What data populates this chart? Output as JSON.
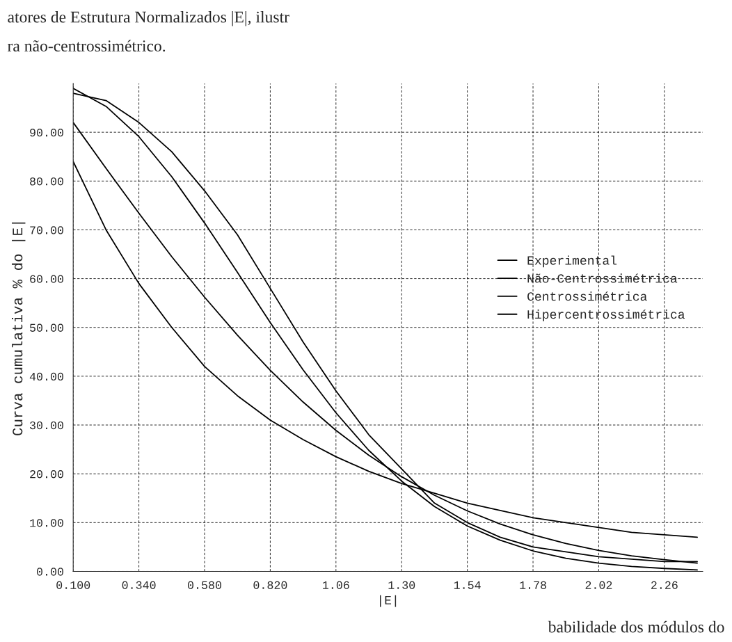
{
  "chart_data": {
    "type": "line",
    "xlabel": "|E|",
    "ylabel": "Curva cumulativa % do |E|",
    "annotations": [
      "atores de Estrutura Normalizados |E|, ilustr",
      "ra não-centrossimétrico.",
      "babilidade dos módulos do"
    ],
    "x": [
      0.1,
      0.22,
      0.34,
      0.46,
      0.58,
      0.7,
      0.82,
      0.94,
      1.06,
      1.18,
      1.3,
      1.42,
      1.54,
      1.66,
      1.78,
      1.9,
      2.02,
      2.14,
      2.26,
      2.38
    ],
    "series": [
      {
        "name": "Experimental",
        "color": "#000000",
        "values": [
          98,
          96.5,
          92,
          86,
          78,
          69,
          58,
          47,
          37,
          28,
          21,
          14,
          10,
          7,
          5,
          4,
          3,
          2.5,
          2,
          2
        ]
      },
      {
        "name": "Não-Centrossimétrica",
        "color": "#000000",
        "values": [
          99,
          95.3,
          89.1,
          80.9,
          71.4,
          61.3,
          51,
          41.3,
          32.5,
          24.8,
          18.5,
          13.3,
          9.3,
          6.4,
          4.2,
          2.7,
          1.7,
          1,
          0.6,
          0.3
        ]
      },
      {
        "name": "Centrossimétrica",
        "color": "#000000",
        "values": [
          92,
          82.6,
          73.4,
          64.5,
          56.2,
          48.4,
          41.2,
          34.7,
          28.9,
          23.8,
          19.4,
          15.6,
          12.4,
          9.7,
          7.5,
          5.7,
          4.3,
          3.2,
          2.4,
          1.7
        ]
      },
      {
        "name": "Hipercentrossimétrica",
        "color": "#000000",
        "values": [
          84,
          70,
          59,
          50,
          42,
          36,
          31,
          27,
          23.5,
          20.5,
          18,
          16,
          14,
          12.5,
          11,
          10,
          9,
          8,
          7.5,
          7
        ]
      }
    ],
    "xlim": [
      0.1,
      2.4
    ],
    "ylim": [
      0,
      100
    ],
    "xticks": [
      {
        "value": 0.1,
        "label": "0.100"
      },
      {
        "value": 0.34,
        "label": "0.340"
      },
      {
        "value": 0.58,
        "label": "0.580"
      },
      {
        "value": 0.82,
        "label": "0.820"
      },
      1.06,
      {
        "value": 1.3,
        "label": "1.30"
      },
      1.54,
      1.78,
      2.02,
      2.26
    ],
    "yticks": [
      {
        "value": 0,
        "label": "0.00"
      },
      {
        "value": 10,
        "label": "10.00"
      },
      {
        "value": 20,
        "label": "20.00"
      },
      {
        "value": 30,
        "label": "30.00"
      },
      {
        "value": 40,
        "label": "40.00"
      },
      {
        "value": 50,
        "label": "50.00"
      },
      {
        "value": 60,
        "label": "60.00"
      },
      {
        "value": 70,
        "label": "70.00"
      },
      {
        "value": 80,
        "label": "80.00"
      },
      {
        "value": 90,
        "label": "90.00"
      }
    ],
    "grid": true,
    "legend": "right",
    "marker": "none",
    "line_style": "solid"
  }
}
